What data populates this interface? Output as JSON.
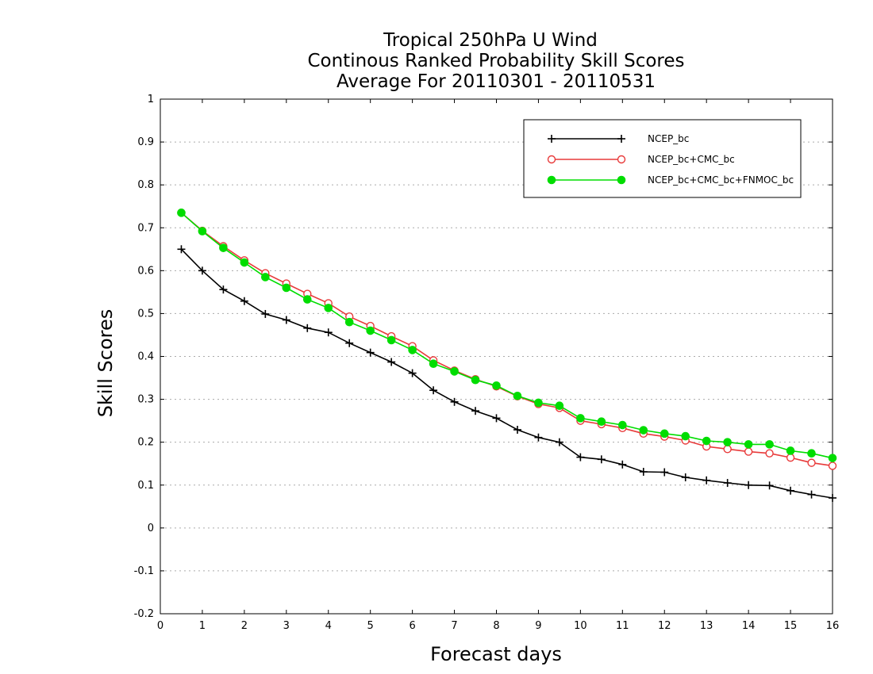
{
  "chart_data": {
    "type": "line",
    "title_lines": [
      "Tropical 250hPa U Wind",
      "Continous Ranked Probability Skill Scores",
      "Average For 20110301 - 20110531"
    ],
    "xlabel": "Forecast days",
    "ylabel": "Skill Scores",
    "xlim": [
      0,
      16
    ],
    "ylim": [
      -0.2,
      1
    ],
    "x_ticks": [
      0,
      1,
      2,
      3,
      4,
      5,
      6,
      7,
      8,
      9,
      10,
      11,
      12,
      13,
      14,
      15,
      16
    ],
    "y_ticks": [
      -0.2,
      -0.1,
      0,
      0.1,
      0.2,
      0.3,
      0.4,
      0.5,
      0.6,
      0.7,
      0.8,
      0.9,
      1
    ],
    "y_tick_labels": [
      "-0.2",
      "-0.1",
      "0",
      "0.1",
      "0.2",
      "0.3",
      "0.4",
      "0.5",
      "0.6",
      "0.7",
      "0.8",
      "0.9",
      "1"
    ],
    "grid": "horizontal dotted",
    "legend_position": "top-right",
    "x": [
      0.5,
      1,
      1.5,
      2,
      2.5,
      3,
      3.5,
      4,
      4.5,
      5,
      5.5,
      6,
      6.5,
      7,
      7.5,
      8,
      8.5,
      9,
      9.5,
      10,
      10.5,
      11,
      11.5,
      12,
      12.5,
      13,
      13.5,
      14,
      14.5,
      15,
      15.5,
      16
    ],
    "series": [
      {
        "name": "NCEP_bc",
        "color": "#000000",
        "marker": "plus",
        "values": [
          0.65,
          0.6,
          0.556,
          0.529,
          0.499,
          0.485,
          0.466,
          0.456,
          0.431,
          0.409,
          0.387,
          0.361,
          0.321,
          0.294,
          0.273,
          0.256,
          0.229,
          0.211,
          0.2,
          0.165,
          0.16,
          0.148,
          0.131,
          0.13,
          0.118,
          0.111,
          0.105,
          0.1,
          0.099,
          0.087,
          0.078,
          0.07
        ]
      },
      {
        "name": "NCEP_bc+CMC_bc",
        "color": "#e83a3a",
        "marker": "open-circle",
        "values": [
          0.735,
          0.693,
          0.657,
          0.624,
          0.594,
          0.57,
          0.546,
          0.524,
          0.493,
          0.471,
          0.447,
          0.424,
          0.391,
          0.367,
          0.347,
          0.33,
          0.307,
          0.289,
          0.28,
          0.25,
          0.242,
          0.233,
          0.22,
          0.213,
          0.204,
          0.19,
          0.184,
          0.178,
          0.174,
          0.164,
          0.152,
          0.145
        ]
      },
      {
        "name": "NCEP_bc+CMC_bc+FNMOC_bc",
        "color": "#00dd00",
        "marker": "filled-circle",
        "values": [
          0.735,
          0.692,
          0.653,
          0.619,
          0.585,
          0.56,
          0.533,
          0.513,
          0.48,
          0.46,
          0.438,
          0.415,
          0.383,
          0.365,
          0.345,
          0.332,
          0.308,
          0.292,
          0.285,
          0.256,
          0.248,
          0.24,
          0.228,
          0.22,
          0.214,
          0.203,
          0.2,
          0.195,
          0.195,
          0.18,
          0.174,
          0.163
        ]
      }
    ]
  }
}
